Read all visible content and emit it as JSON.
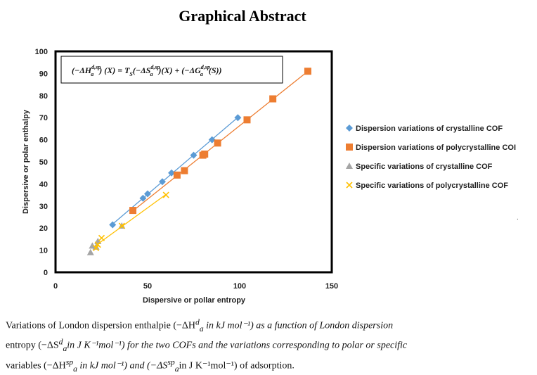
{
  "title": "Graphical Abstract",
  "chart_data": {
    "type": "scatter",
    "xlabel": "Dispersive or pollar entropy",
    "ylabel": "Dispersive or polar enthalpy",
    "xlim": [
      0,
      150
    ],
    "ylim": [
      0,
      100
    ],
    "xticks": [
      "0",
      "50",
      "100",
      "150"
    ],
    "yticks": [
      "0",
      "10",
      "20",
      "30",
      "40",
      "50",
      "60",
      "70",
      "80",
      "90",
      "100"
    ],
    "equation": "(−ΔH_a^{d,sp}) (X) = T_S(−ΔS_a^{d,sp})(X) + (−ΔG_a^{d,sp}(S))",
    "equation_parts": {
      "lhs": "(−ΔH",
      "lhs_sub": "a",
      "lhs_sup": "d,sp",
      "mid": ") (X) = T",
      "mid_sub": "S",
      "mid2": "(−ΔS",
      "mid2_sub": "a",
      "mid2_sup": "d,sp",
      "mid3": ")(X) + (−ΔG",
      "mid3_sub": "a",
      "mid3_sup": "d,sp",
      "end": "(S))"
    },
    "legend_position": "right",
    "series": [
      {
        "name": "Dispersion variations of crystalline COF",
        "marker": "diamond",
        "color": "#5b9bd5",
        "trendline": true,
        "points": [
          [
            31,
            21.5
          ],
          [
            47.5,
            33.5
          ],
          [
            50,
            35.5
          ],
          [
            58,
            41
          ],
          [
            63,
            45
          ],
          [
            75,
            53
          ],
          [
            85,
            60
          ],
          [
            99,
            70
          ]
        ]
      },
      {
        "name": "Dispersion variations of polycrystalline COI",
        "marker": "square",
        "color": "#ed7d31",
        "trendline": true,
        "points": [
          [
            42,
            28
          ],
          [
            66,
            44
          ],
          [
            70,
            46
          ],
          [
            80,
            53
          ],
          [
            81,
            53.5
          ],
          [
            88,
            58.5
          ],
          [
            104,
            69
          ],
          [
            118,
            78.5
          ],
          [
            137,
            91
          ]
        ]
      },
      {
        "name": "Specific variations of crystalline COF",
        "marker": "triangle",
        "color": "#a5a5a5",
        "trendline": false,
        "points": [
          [
            19,
            9
          ],
          [
            20,
            12
          ],
          [
            22,
            11.5
          ],
          [
            23,
            14
          ],
          [
            36,
            21
          ]
        ]
      },
      {
        "name": "Specific variations of polycrystalline COF",
        "marker": "x",
        "color": "#ffc000",
        "trendline": true,
        "points": [
          [
            22,
            11
          ],
          [
            23,
            12.5
          ],
          [
            25,
            15.5
          ],
          [
            36,
            21
          ],
          [
            60,
            35
          ]
        ]
      }
    ]
  },
  "caption": {
    "line1": "Variations of London dispersion enthalpie (−ΔH",
    "line1_sub": "a",
    "line1_sup": "d",
    "line1_rest": " in kJ mol⁻¹) as a function of London dispersion",
    "line2": "entropy (−ΔS",
    "line2_sub": "a",
    "line2_sup": "d",
    "line2_rest": "in J K⁻¹mol⁻¹) for the two COFs and the variations corresponding to polar or specific",
    "line3": "variables (−ΔH",
    "line3_sub": "a",
    "line3_sup": "sp",
    "line3_rest": " in kJ mol⁻¹) and (−ΔS",
    "line3_sub2": "a",
    "line3_sup2": "sp",
    "line3_rest2": "in J K⁻¹mol⁻¹) of adsorption."
  }
}
